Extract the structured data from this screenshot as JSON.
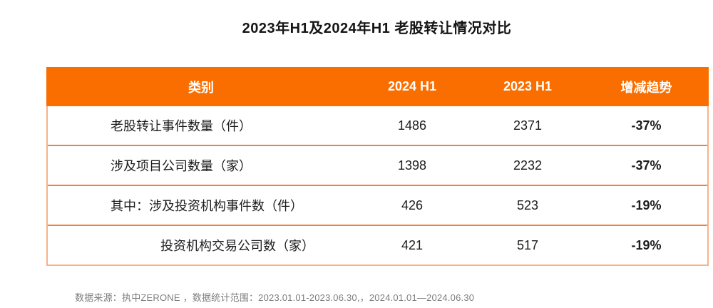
{
  "title": "2023年H1及2024年H1 老股转让情况对比",
  "colors": {
    "header_bg": "#fa6e00",
    "row_divider": "#f5803c",
    "outer_border": "#f8b286",
    "header_text": "#ffffff",
    "body_text": "#1c1c1c",
    "footer_text": "#7d7d7d"
  },
  "table": {
    "columns": [
      "类别",
      "2024 H1",
      "2023 H1",
      "增减趋势"
    ],
    "rows": [
      {
        "label": "老股转让事件数量（件）",
        "v2024": "1486",
        "v2023": "2371",
        "trend": "-37%"
      },
      {
        "label": "涉及项目公司数量（家）",
        "v2024": "1398",
        "v2023": "2232",
        "trend": "-37%"
      },
      {
        "label": "其中：涉及投资机构事件数（件）",
        "v2024": "426",
        "v2023": "523",
        "trend": "-19%"
      },
      {
        "label": "投资机构交易公司数（家）",
        "v2024": "421",
        "v2023": "517",
        "trend": "-19%"
      }
    ]
  },
  "footer": {
    "note": "数据来源：执中ZERONE ，数据统计范围：2023.01.01-2023.06.30,，2024.01.01—2024.06.30"
  },
  "chart_data": {
    "type": "table",
    "title": "2023年H1及2024年H1 老股转让情况对比",
    "columns": [
      "类别",
      "2024 H1",
      "2023 H1",
      "增减趋势"
    ],
    "rows": [
      [
        "老股转让事件数量（件）",
        1486,
        2371,
        "-37%"
      ],
      [
        "涉及项目公司数量（家）",
        1398,
        2232,
        "-37%"
      ],
      [
        "其中：涉及投资机构事件数（件）",
        426,
        523,
        "-19%"
      ],
      [
        "投资机构交易公司数（家）",
        421,
        517,
        "-19%"
      ]
    ],
    "source_note": "数据来源：执中ZERONE ，数据统计范围：2023.01.01-2023.06.30,，2024.01.01—2024.06.30"
  }
}
